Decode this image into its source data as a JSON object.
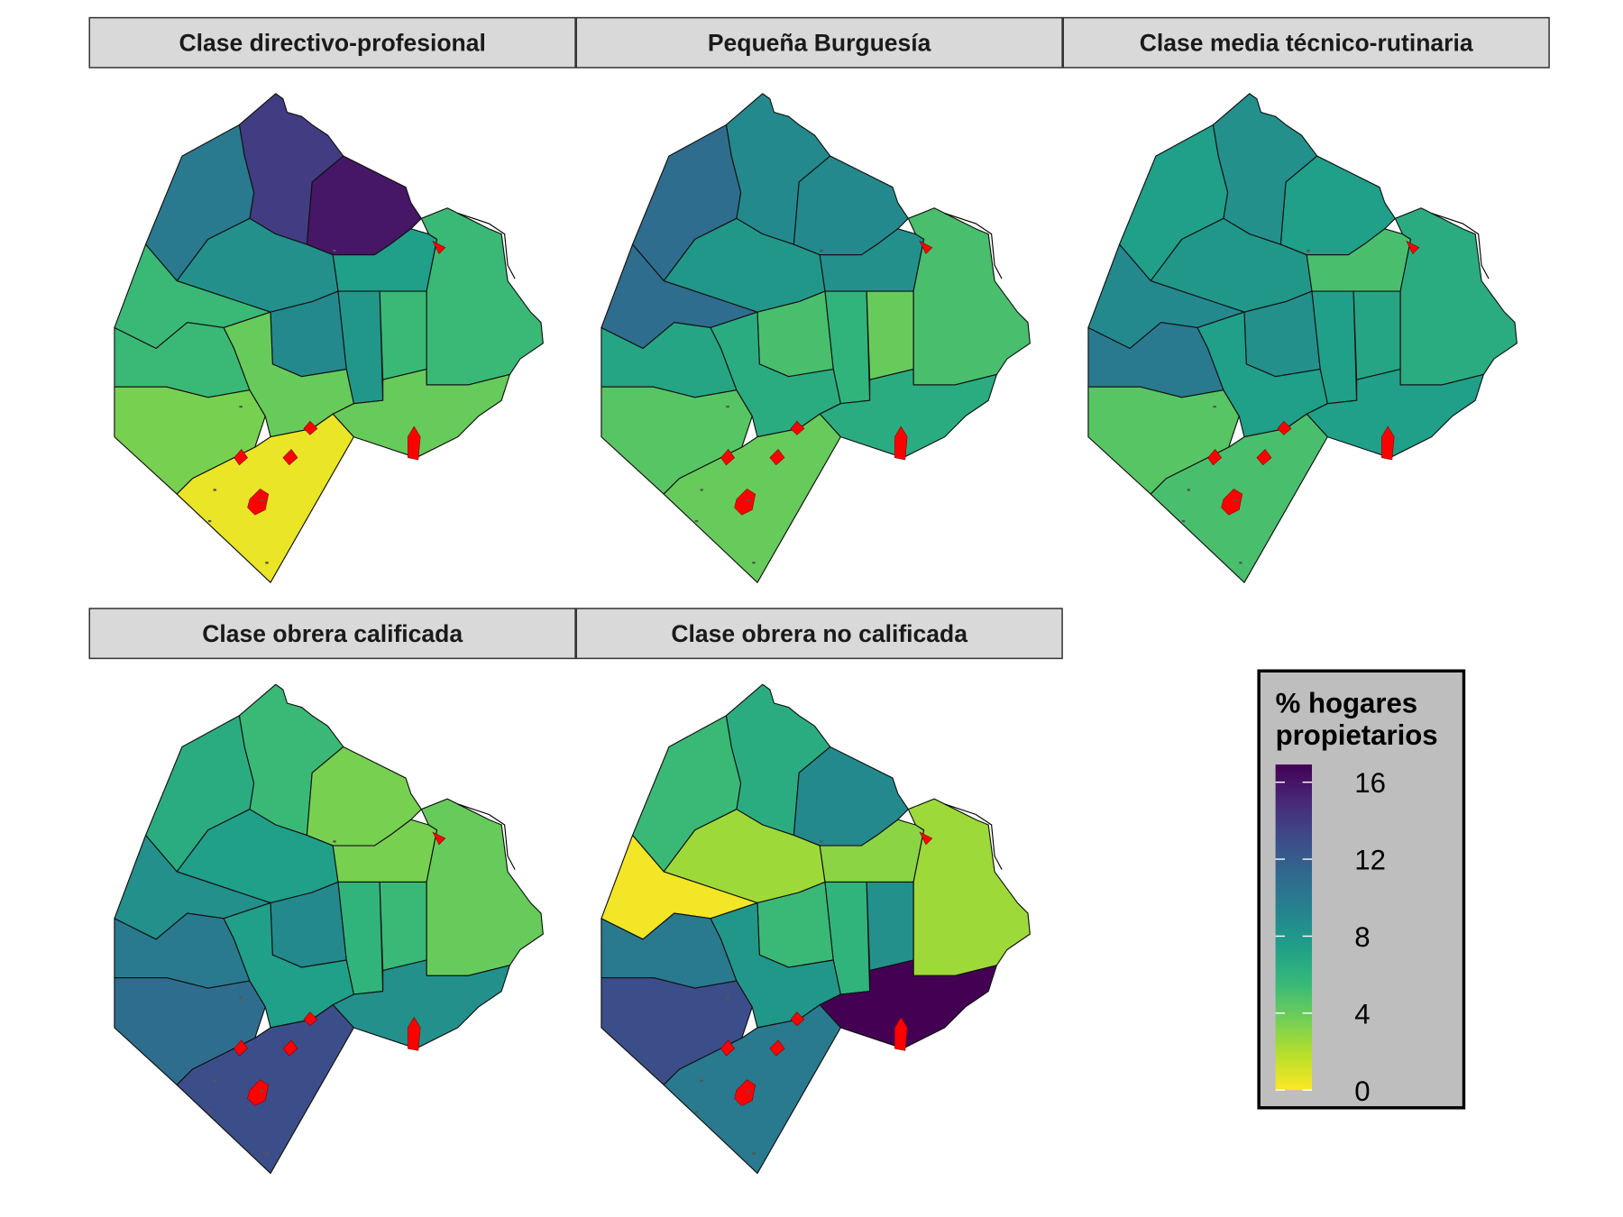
{
  "facets": [
    {
      "title": "Clase directivo-profesional",
      "values": {
        "C1": 5.5,
        "C2": 7.5,
        "C3": 5.5,
        "C4": 4,
        "C5": 8,
        "C6": 9,
        "C7": 4,
        "C8": 0.5,
        "C9": 3.5,
        "C10": 5.5,
        "C11": 5.5,
        "C12": 10,
        "C13": 14,
        "C14": 16,
        "C15": 8.5
      }
    },
    {
      "title": "Pequeña Burguesía",
      "values": {
        "C1": 5,
        "C2": 8.5,
        "C3": 4,
        "C4": 6.5,
        "C5": 6,
        "C6": 5,
        "C7": 6.5,
        "C8": 4,
        "C9": 4.5,
        "C10": 7,
        "C11": 11,
        "C12": 11,
        "C13": 9,
        "C14": 9,
        "C15": 8
      }
    },
    {
      "title": "Clase media técnico-rutinaria",
      "values": {
        "C1": 6.5,
        "C2": 5,
        "C3": 7,
        "C4": 7.5,
        "C5": 7.5,
        "C6": 8.5,
        "C7": 7.5,
        "C8": 5,
        "C9": 4.5,
        "C10": 10,
        "C11": 9,
        "C12": 7.5,
        "C13": 8.5,
        "C14": 7.5,
        "C15": 8
      }
    },
    {
      "title": "Clase obrera calificada",
      "values": {
        "C1": 4,
        "C2": 3.5,
        "C3": 5.5,
        "C4": 8.5,
        "C5": 6,
        "C6": 9,
        "C7": 7.5,
        "C8": 13,
        "C9": 11,
        "C10": 10,
        "C11": 8.5,
        "C12": 6.5,
        "C13": 5.5,
        "C14": 3.5,
        "C15": 7.5
      }
    },
    {
      "title": "Clase obrera no calificada",
      "values": {
        "C1": 2.5,
        "C2": 3,
        "C3": 8.5,
        "C4": 17,
        "C5": 6,
        "C6": 5.5,
        "C7": 8,
        "C8": 10,
        "C9": 13,
        "C10": 10,
        "C11": 0.3,
        "C12": 5.5,
        "C13": 6.5,
        "C14": 9,
        "C15": 2.5
      }
    }
  ],
  "legend": {
    "title_line1": "% hogares",
    "title_line2": "propietarios",
    "ticks": [
      "16",
      "12",
      "8",
      "4",
      "0"
    ],
    "tick_values": [
      16,
      12,
      8,
      4,
      0
    ],
    "range": [
      0,
      17
    ]
  },
  "colors": {
    "strip_bg": "#d9d9d9",
    "legend_bg": "#bebebe",
    "highlight": "#ff0000",
    "viridis": [
      "#440154",
      "#482878",
      "#3e4a89",
      "#31688e",
      "#26828e",
      "#1f9e89",
      "#35b779",
      "#6ece58",
      "#b5de2b",
      "#fde725"
    ]
  }
}
